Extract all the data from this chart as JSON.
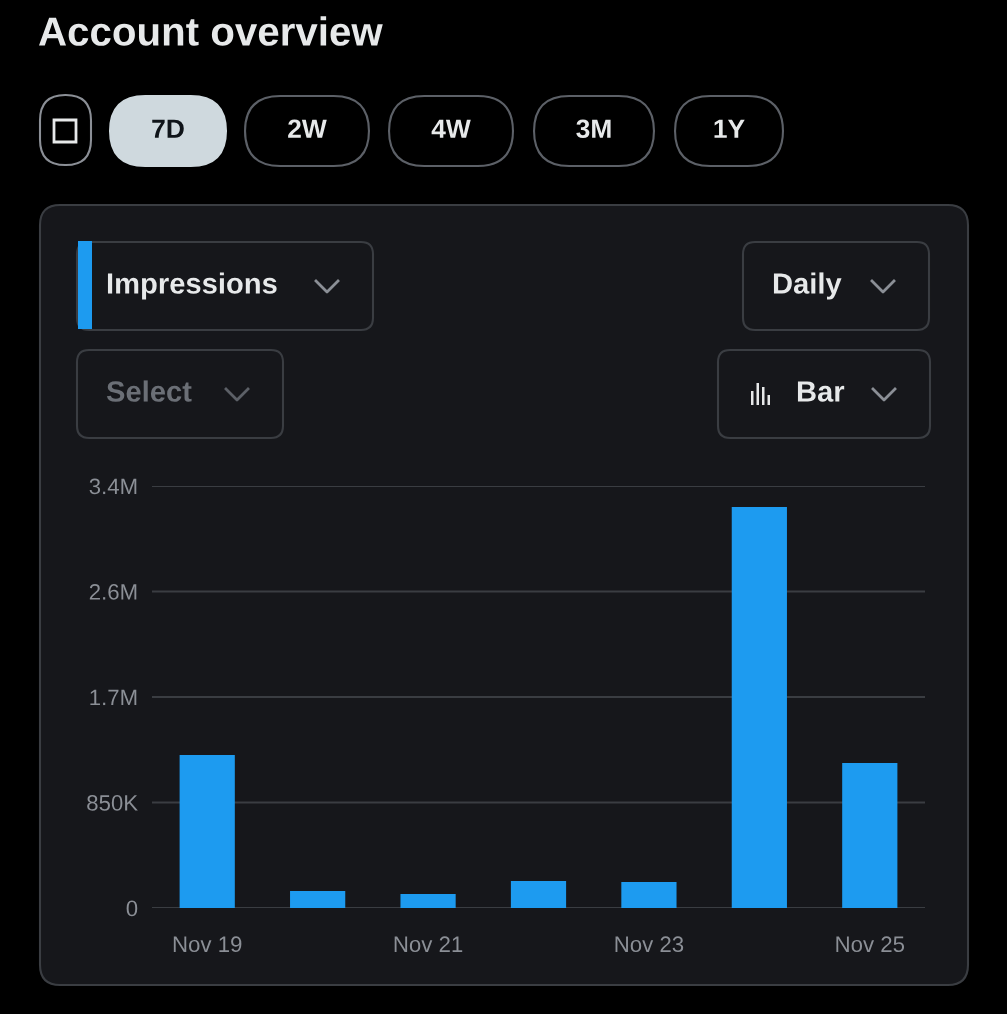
{
  "chart_data": {
    "type": "bar",
    "title": "Account overview",
    "categories": [
      "Nov 19",
      null,
      "Nov 21",
      null,
      "Nov 23",
      null,
      "Nov 25"
    ],
    "values": [
      1233000,
      137000,
      113000,
      218000,
      210000,
      3230000,
      1168000
    ],
    "color": "#1d9bf0",
    "ylim": [
      0,
      3400000
    ],
    "yticks": [
      {
        "value": 0,
        "label": "0"
      },
      {
        "value": 850000,
        "label": "850K"
      },
      {
        "value": 1700000,
        "label": "1.7M"
      },
      {
        "value": 2550000,
        "label": "2.6M"
      },
      {
        "value": 3400000,
        "label": "3.4M"
      }
    ],
    "grid": "y",
    "legend": false,
    "annotations": [
      "7D",
      "2W",
      "4W",
      "3M",
      "1Y",
      "Impressions",
      "Daily",
      "Select",
      "Bar"
    ]
  }
}
